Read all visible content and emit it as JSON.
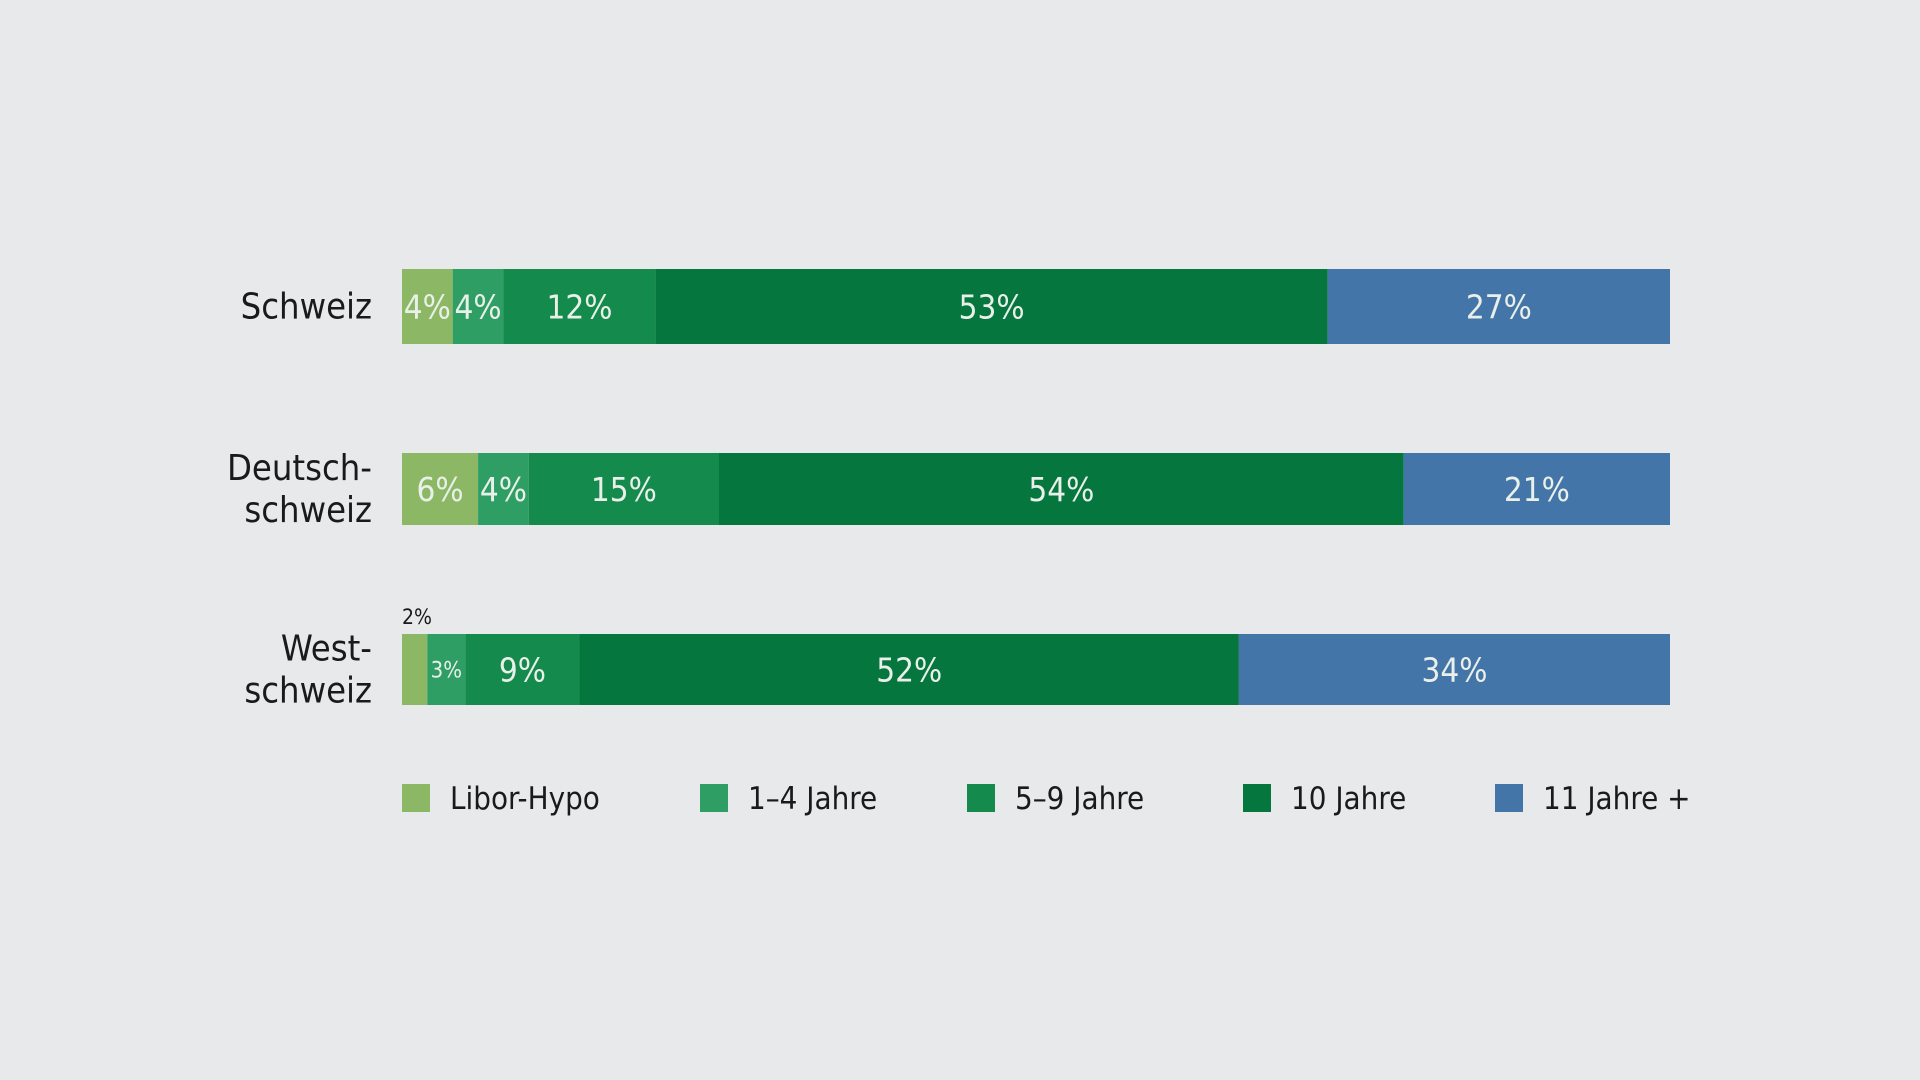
{
  "chart_data": {
    "type": "bar",
    "orientation": "horizontal",
    "stacked": true,
    "percent": true,
    "categories": [
      [
        "Schweiz"
      ],
      [
        "Deutsch-",
        "schweiz"
      ],
      [
        "West-",
        "schweiz"
      ]
    ],
    "series": [
      {
        "name": "Libor-Hypo",
        "color": "#8cb865",
        "values": [
          4,
          6,
          2
        ]
      },
      {
        "name": "1–4 Jahre",
        "color": "#2e9e65",
        "values": [
          4,
          4,
          3
        ]
      },
      {
        "name": "5–9 Jahre",
        "color": "#148a4c",
        "values": [
          12,
          15,
          9
        ]
      },
      {
        "name": "10 Jahre",
        "color": "#06763f",
        "values": [
          53,
          54,
          52
        ]
      },
      {
        "name": "11 Jahre +",
        "color": "#4475a8",
        "values": [
          27,
          21,
          34
        ]
      }
    ],
    "value_suffix": "%",
    "xlim": [
      0,
      100
    ],
    "legend_position": "bottom",
    "grid": false
  }
}
